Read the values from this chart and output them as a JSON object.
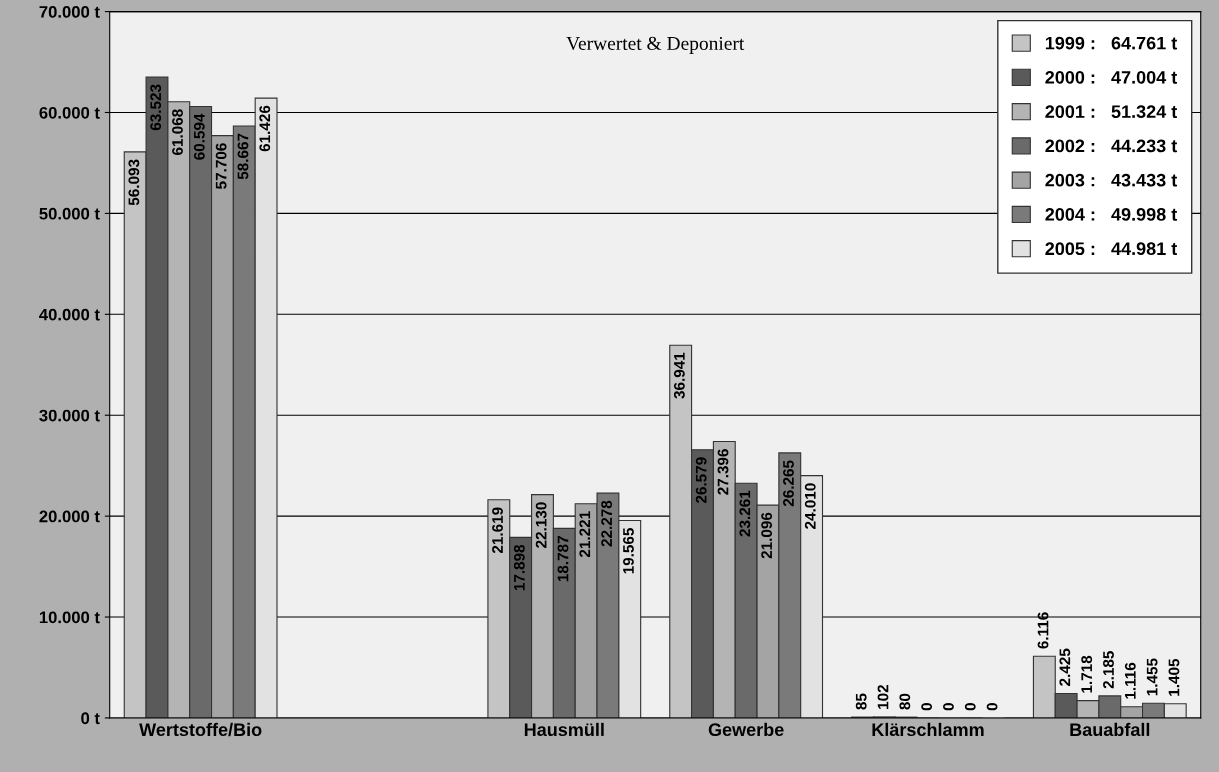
{
  "chart_data": {
    "type": "bar",
    "title": "Verwertet & Deponiert",
    "categories": [
      "Wertstoffe/Bio",
      null,
      "Hausmüll",
      "Gewerbe",
      "Klärschlamm",
      "Bauabfall"
    ],
    "series": [
      {
        "name": "1999 :   64.761 t",
        "color": "#c4c4c4",
        "values": [
          56093,
          null,
          21619,
          36941,
          85,
          6116
        ],
        "value_labels": [
          "56.093",
          null,
          "21.619",
          "36.941",
          "85",
          "6.116"
        ]
      },
      {
        "name": "2000 :   47.004 t",
        "color": "#5a5a5a",
        "values": [
          63523,
          null,
          17898,
          26579,
          102,
          2425
        ],
        "value_labels": [
          "63.523",
          null,
          "17.898",
          "26.579",
          "102",
          "2.425"
        ]
      },
      {
        "name": "2001 :   51.324 t",
        "color": "#b4b4b4",
        "values": [
          61068,
          null,
          22130,
          27396,
          80,
          1718
        ],
        "value_labels": [
          "61.068",
          null,
          "22.130",
          "27.396",
          "80",
          "1.718"
        ]
      },
      {
        "name": "2002 :   44.233 t",
        "color": "#6a6a6a",
        "values": [
          60594,
          null,
          18787,
          23261,
          0,
          2185
        ],
        "value_labels": [
          "60.594",
          null,
          "18.787",
          "23.261",
          "0",
          "2.185"
        ]
      },
      {
        "name": "2003 :   43.433 t",
        "color": "#a4a4a4",
        "values": [
          57706,
          null,
          21221,
          21096,
          0,
          1116
        ],
        "value_labels": [
          "57.706",
          null,
          "21.221",
          "21.096",
          "0",
          "1.116"
        ]
      },
      {
        "name": "2004 :   49.998 t",
        "color": "#7a7a7a",
        "values": [
          58667,
          null,
          22278,
          26265,
          0,
          1455
        ],
        "value_labels": [
          "58.667",
          null,
          "22.278",
          "26.265",
          "0",
          "1.455"
        ]
      },
      {
        "name": "2005 :   44.981 t",
        "color": "#e2e2e2",
        "values": [
          61426,
          null,
          19565,
          24010,
          0,
          1405
        ],
        "value_labels": [
          "61.426",
          null,
          "19.565",
          "24.010",
          "0",
          "1.405"
        ]
      }
    ],
    "ylim": [
      0,
      70000
    ],
    "yticks": [
      {
        "value": 0,
        "label": "0 t"
      },
      {
        "value": 10000,
        "label": "10.000 t"
      },
      {
        "value": 20000,
        "label": "20.000 t"
      },
      {
        "value": 30000,
        "label": "30.000 t"
      },
      {
        "value": 40000,
        "label": "40.000 t"
      },
      {
        "value": 50000,
        "label": "50.000 t"
      },
      {
        "value": 60000,
        "label": "60.000 t"
      },
      {
        "value": 70000,
        "label": "70.000 t"
      }
    ],
    "grid": "y",
    "legend": "top right"
  }
}
